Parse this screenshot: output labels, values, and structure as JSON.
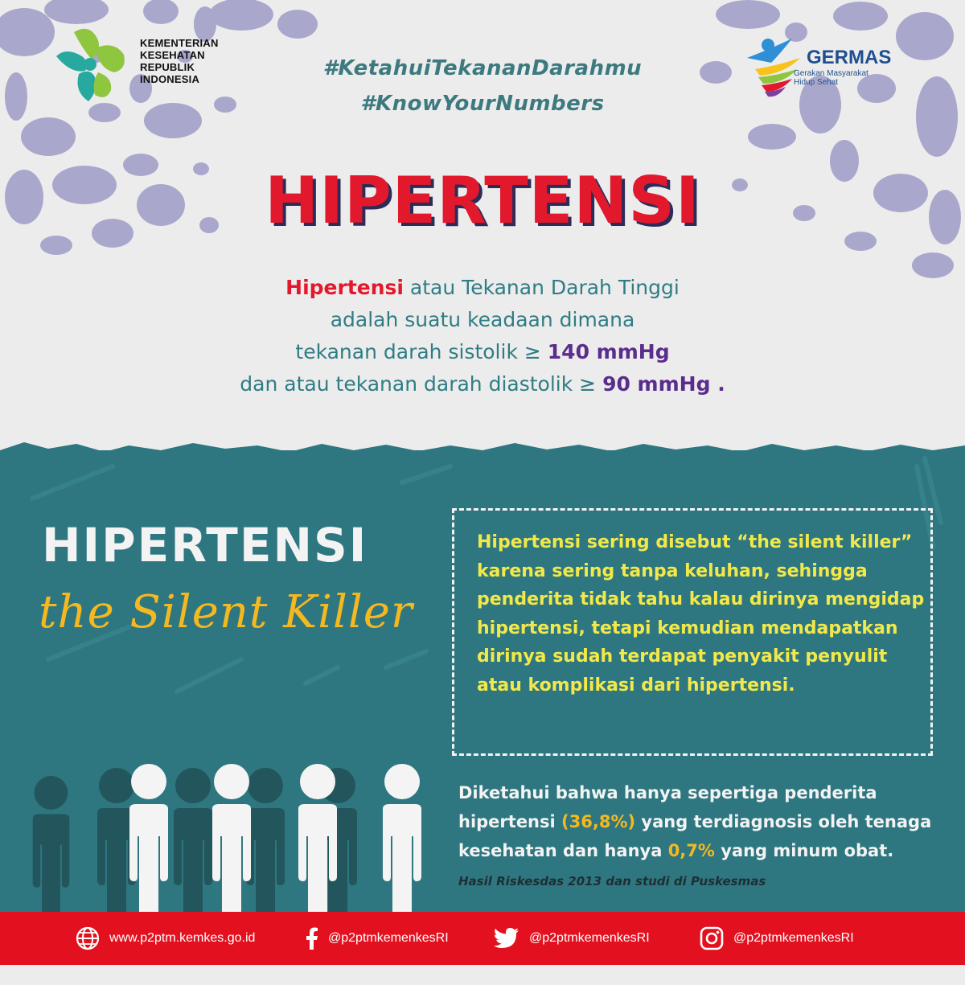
{
  "colors": {
    "brand_red": "#e2192d",
    "teal": "#2e7780",
    "hashtag_teal": "#3d7a80",
    "yellow": "#f2e84a",
    "orange": "#f5b820",
    "purple": "#5a2d8c",
    "footer_red": "#e3111f",
    "blob_lilac": "#a9a8cc"
  },
  "header": {
    "kemenkes_lines": [
      "KEMENTERIAN",
      "KESEHATAN",
      "REPUBLIK",
      "INDONESIA"
    ],
    "germas_name": "GERMAS",
    "germas_tagline": "Gerakan Masyarakat Hidup Sehat",
    "hashtag_1": "#KetahuiTekananDarahmu",
    "hashtag_2": "#KnowYourNumbers"
  },
  "main": {
    "title": "HIPERTENSI",
    "definition": {
      "term": "Hipertensi",
      "line1_rest": " atau Tekanan Darah Tinggi",
      "line2": "adalah suatu keadaan dimana",
      "line3_pre": "tekanan darah sistolik ≥ ",
      "line3_value": "140 mmHg",
      "line4_pre": "dan atau tekanan darah diastolik ≥ ",
      "line4_value": "90 mmHg",
      "line4_post": " ."
    }
  },
  "silent": {
    "title": "HIPERTENSI",
    "subtitle": "the Silent Killer",
    "quote": "Hipertensi sering disebut “the silent killer” karena sering tanpa keluhan, sehingga penderita tidak tahu kalau dirinya mengidap hipertensi, tetapi kemudian mendapatkan dirinya sudah terdapat penyakit penyulit atau komplikasi dari hipertensi.",
    "stat": {
      "line1": "Diketahui bahwa hanya sepertiga penderita",
      "line2_pre": "hipertensi ",
      "line2_value": "(36,8%)",
      "line2_post": " yang terdiagnosis oleh tenaga",
      "line3_pre": "kesehatan dan hanya ",
      "line3_value": "0,7%",
      "line3_post": " yang minum obat."
    },
    "source": "Hasil Riskesdas 2013 dan studi di Puskesmas"
  },
  "footer": {
    "website": "www.p2ptm.kemkes.go.id",
    "facebook": "@p2ptmkemenkesRI",
    "twitter": "@p2ptmkemenkesRI",
    "instagram": "@p2ptmkemenkesRI",
    "icons": [
      "globe-icon",
      "facebook-icon",
      "twitter-icon",
      "instagram-icon"
    ]
  }
}
